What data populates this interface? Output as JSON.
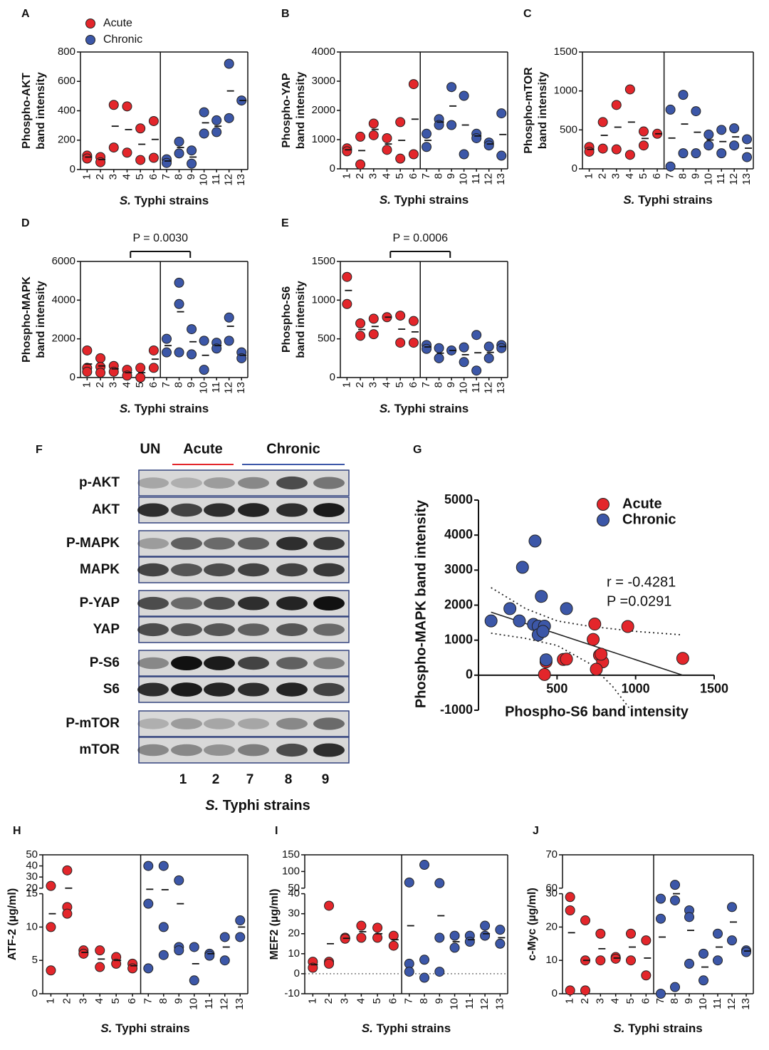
{
  "chart_data": [
    {
      "type": "dot",
      "panel": "A",
      "ylabel": [
        "Phospho-AKT",
        "band intensity"
      ],
      "xlabel_italic": "S.",
      "xlabel": "Typhi strains",
      "categories": [
        "1",
        "2",
        "3",
        "4",
        "5",
        "6",
        "7",
        "8",
        "9",
        "10",
        "11",
        "12",
        "13"
      ],
      "ylim": [
        0,
        800
      ],
      "yticks": [
        0,
        200,
        400,
        600,
        800
      ],
      "legend": "upper left",
      "series": [
        {
          "name": "Acute",
          "color": "#e3262b",
          "x": [
            "1",
            "1",
            "2",
            "2",
            "3",
            "3",
            "4",
            "4",
            "5",
            "5",
            "6",
            "6"
          ],
          "values": [
            95,
            75,
            85,
            50,
            440,
            150,
            430,
            115,
            280,
            65,
            330,
            80
          ]
        },
        {
          "name": "Chronic",
          "color": "#3c57a8",
          "x": [
            "7",
            "7",
            "8",
            "8",
            "9",
            "9",
            "10",
            "10",
            "11",
            "11",
            "12",
            "12",
            "13"
          ],
          "values": [
            70,
            45,
            190,
            110,
            130,
            40,
            390,
            245,
            335,
            255,
            720,
            350,
            470
          ]
        }
      ],
      "means": [
        85,
        68,
        295,
        272,
        172,
        205,
        58,
        150,
        85,
        318,
        295,
        535,
        470
      ]
    },
    {
      "type": "dot",
      "panel": "B",
      "ylabel": [
        "Phospho-YAP",
        "band intensity"
      ],
      "xlabel_italic": "S.",
      "xlabel": "Typhi strains",
      "categories": [
        "1",
        "2",
        "3",
        "4",
        "5",
        "6",
        "7",
        "8",
        "9",
        "10",
        "11",
        "12",
        "13"
      ],
      "ylim": [
        0,
        4000
      ],
      "yticks": [
        0,
        1000,
        2000,
        3000,
        4000
      ],
      "series": [
        {
          "color": "#e3262b",
          "x": [
            "1",
            "1",
            "2",
            "2",
            "3",
            "3",
            "4",
            "4",
            "5",
            "5",
            "6",
            "6"
          ],
          "values": [
            700,
            600,
            1100,
            150,
            1550,
            1150,
            1050,
            650,
            1600,
            350,
            2900,
            500
          ]
        },
        {
          "color": "#3c57a8",
          "x": [
            "7",
            "7",
            "8",
            "8",
            "9",
            "9",
            "10",
            "10",
            "11",
            "11",
            "12",
            "12",
            "13",
            "13"
          ],
          "values": [
            1200,
            750,
            1700,
            1500,
            2800,
            1500,
            2500,
            500,
            1200,
            1050,
            900,
            800,
            1900,
            450
          ]
        }
      ],
      "means": [
        650,
        625,
        1350,
        850,
        975,
        1700,
        975,
        1600,
        2150,
        1500,
        1125,
        850,
        1175
      ]
    },
    {
      "type": "dot",
      "panel": "C",
      "ylabel": [
        "Phospho-mTOR",
        "band intensity"
      ],
      "xlabel_italic": "S.",
      "xlabel": "Typhi strains",
      "categories": [
        "1",
        "2",
        "3",
        "4",
        "5",
        "6",
        "7",
        "8",
        "9",
        "10",
        "11",
        "12",
        "13"
      ],
      "ylim": [
        0,
        1500
      ],
      "yticks": [
        0,
        500,
        1000,
        1500
      ],
      "series": [
        {
          "color": "#e3262b",
          "x": [
            "1",
            "1",
            "2",
            "2",
            "3",
            "3",
            "4",
            "4",
            "5",
            "5",
            "6"
          ],
          "values": [
            280,
            220,
            600,
            260,
            820,
            250,
            1020,
            180,
            480,
            300,
            450
          ]
        },
        {
          "color": "#3c57a8",
          "x": [
            "7",
            "7",
            "8",
            "8",
            "9",
            "9",
            "10",
            "10",
            "11",
            "11",
            "12",
            "12",
            "13",
            "13"
          ],
          "values": [
            760,
            30,
            950,
            200,
            740,
            200,
            440,
            300,
            500,
            200,
            520,
            300,
            380,
            150
          ]
        }
      ],
      "means": [
        250,
        430,
        535,
        600,
        390,
        450,
        395,
        575,
        470,
        370,
        350,
        410,
        265
      ]
    },
    {
      "type": "dot",
      "panel": "D",
      "ylabel": [
        "Phospho-MAPK",
        "band intensity"
      ],
      "xlabel_italic": "S.",
      "xlabel": "Typhi strains",
      "annotation": "P = 0.0030",
      "categories": [
        "1",
        "2",
        "3",
        "4",
        "5",
        "6",
        "7",
        "8",
        "9",
        "10",
        "11",
        "12",
        "13"
      ],
      "ylim": [
        0,
        6000
      ],
      "yticks": [
        0,
        2000,
        4000,
        6000
      ],
      "series": [
        {
          "color": "#e3262b",
          "x": [
            "1",
            "1",
            "1",
            "2",
            "2",
            "2",
            "3",
            "3",
            "4",
            "4",
            "5",
            "5",
            "6",
            "6"
          ],
          "values": [
            1400,
            500,
            300,
            1000,
            550,
            250,
            600,
            300,
            400,
            100,
            500,
            0,
            1400,
            500
          ]
        },
        {
          "color": "#3c57a8",
          "x": [
            "7",
            "7",
            "8",
            "8",
            "8",
            "9",
            "9",
            "10",
            "10",
            "11",
            "11",
            "12",
            "12",
            "13",
            "13"
          ],
          "values": [
            2000,
            1300,
            4900,
            3800,
            1300,
            2500,
            1200,
            1900,
            400,
            1800,
            1500,
            3100,
            1900,
            1300,
            1000
          ]
        }
      ],
      "means": [
        700,
        600,
        450,
        250,
        250,
        950,
        1650,
        3400,
        1850,
        1150,
        1650,
        2650,
        1150
      ]
    },
    {
      "type": "dot",
      "panel": "E",
      "ylabel": [
        "Phospho-S6",
        "band intensity"
      ],
      "xlabel_italic": "S.",
      "xlabel": "Typhi strains",
      "annotation": "P = 0.0006",
      "categories": [
        "1",
        "2",
        "3",
        "4",
        "5",
        "6",
        "7",
        "8",
        "9",
        "10",
        "11",
        "12",
        "13"
      ],
      "ylim": [
        0,
        1500
      ],
      "yticks": [
        0,
        500,
        1000,
        1500
      ],
      "series": [
        {
          "color": "#e3262b",
          "x": [
            "1",
            "1",
            "2",
            "2",
            "3",
            "3",
            "4",
            "5",
            "5",
            "6",
            "6"
          ],
          "values": [
            1300,
            950,
            700,
            540,
            760,
            560,
            780,
            800,
            450,
            730,
            450
          ]
        },
        {
          "color": "#3c57a8",
          "x": [
            "7",
            "7",
            "8",
            "8",
            "9",
            "10",
            "10",
            "11",
            "11",
            "12",
            "12",
            "13",
            "13"
          ],
          "values": [
            420,
            370,
            380,
            250,
            350,
            390,
            200,
            550,
            90,
            400,
            250,
            420,
            380
          ]
        }
      ],
      "means": [
        1125,
        620,
        660,
        780,
        625,
        590,
        395,
        315,
        350,
        295,
        320,
        325,
        400
      ]
    },
    {
      "type": "scatter",
      "panel": "G",
      "xlabel": "Phospho-S6 band intensity",
      "ylabel": "Phospho-MAPK band intensity",
      "xlim": [
        0,
        1500
      ],
      "ylim": [
        -1000,
        5000
      ],
      "xticks": [
        500,
        1000,
        1500
      ],
      "yticks": [
        -1000,
        0,
        1000,
        2000,
        3000,
        4000,
        5000
      ],
      "legend": "upper right",
      "annotations": [
        "r = -0.4281",
        "P =0.0291"
      ],
      "series": [
        {
          "name": "Acute",
          "color": "#e3262b",
          "x": [
            1300,
            950,
            740,
            730,
            770,
            790,
            780,
            750,
            420,
            430,
            540,
            560
          ],
          "values": [
            480,
            1390,
            1460,
            1020,
            570,
            380,
            600,
            170,
            20,
            380,
            450,
            460
          ]
        },
        {
          "name": "Chronic",
          "color": "#3c57a8",
          "x": [
            80,
            200,
            260,
            280,
            360,
            400,
            560,
            350,
            380,
            420,
            380,
            410,
            430
          ],
          "values": [
            1550,
            1900,
            1550,
            3080,
            3830,
            2250,
            1900,
            1450,
            1400,
            1400,
            1150,
            1250,
            440
          ]
        }
      ],
      "fit": {
        "x": [
          80,
          1300
        ],
        "values": [
          1800,
          0
        ]
      },
      "ci_upper": {
        "x": [
          80,
          300,
          500,
          700,
          1000,
          1300
        ],
        "values": [
          2500,
          1900,
          1550,
          1400,
          1250,
          1150
        ]
      },
      "ci_lower": {
        "x": [
          80,
          300,
          500,
          700,
          850,
          970
        ],
        "values": [
          1200,
          1050,
          850,
          350,
          -300,
          -1000
        ]
      }
    },
    {
      "type": "dot",
      "panel": "H",
      "ylabel": [
        "ATF-2 (µg/ml)"
      ],
      "xlabel_italic": "S.",
      "xlabel": "Typhi strains",
      "categories": [
        "1",
        "2",
        "3",
        "4",
        "5",
        "6",
        "7",
        "8",
        "9",
        "10",
        "11",
        "12",
        "13"
      ],
      "ylim": [
        0,
        50
      ],
      "ybreak": [
        15,
        20
      ],
      "yticks": [
        0,
        5,
        10,
        15,
        20,
        30,
        40,
        50
      ],
      "series": [
        {
          "color": "#e3262b",
          "x": [
            "1",
            "1",
            "1",
            "2",
            "2",
            "2",
            "3",
            "3",
            "4",
            "4",
            "5",
            "5",
            "6",
            "6"
          ],
          "values": [
            22,
            10,
            3.5,
            36,
            13,
            12,
            6.5,
            6,
            6.5,
            4,
            5.5,
            4.5,
            4.5,
            3.8
          ]
        },
        {
          "color": "#3c57a8",
          "x": [
            "7",
            "7",
            "7",
            "8",
            "8",
            "8",
            "9",
            "9",
            "9",
            "10",
            "10",
            "11",
            "11",
            "12",
            "12",
            "13",
            "13"
          ],
          "values": [
            40,
            13.5,
            3.8,
            40,
            10,
            5.8,
            27,
            7,
            6.5,
            7,
            2,
            6,
            5.7,
            8.5,
            5,
            11,
            8.5
          ]
        }
      ],
      "means": [
        12,
        20,
        6.2,
        5.2,
        5,
        4.2,
        19,
        18.6,
        13.5,
        4.5,
        6,
        7,
        10
      ]
    },
    {
      "type": "dot",
      "panel": "I",
      "ylabel": [
        "MEF2 (µg/ml)"
      ],
      "xlabel_italic": "S.",
      "xlabel": "Typhi strains",
      "hline": 0,
      "categories": [
        "1",
        "2",
        "3",
        "4",
        "5",
        "6",
        "7",
        "8",
        "9",
        "10",
        "11",
        "12",
        "13"
      ],
      "ylim": [
        -10,
        150
      ],
      "ybreak": [
        40,
        50
      ],
      "yticks": [
        -10,
        0,
        10,
        20,
        30,
        40,
        50,
        100,
        150
      ],
      "series": [
        {
          "color": "#e3262b",
          "x": [
            "1",
            "1",
            "2",
            "2",
            "2",
            "3",
            "3",
            "4",
            "4",
            "5",
            "5",
            "6",
            "6"
          ],
          "values": [
            6,
            3,
            34,
            6,
            5,
            18,
            17.5,
            24,
            18,
            23,
            18,
            19,
            14
          ]
        },
        {
          "color": "#3c57a8",
          "x": [
            "7",
            "7",
            "7",
            "8",
            "8",
            "8",
            "9",
            "9",
            "9",
            "10",
            "10",
            "11",
            "11",
            "12",
            "12",
            "13",
            "13"
          ],
          "values": [
            67,
            5,
            1,
            120,
            7,
            -2,
            65,
            18,
            1,
            19,
            13,
            19,
            16,
            24,
            19,
            22,
            15
          ]
        }
      ],
      "means": [
        4.5,
        15,
        17.7,
        21,
        20,
        17,
        24,
        null,
        29,
        16,
        17,
        20,
        18
      ]
    },
    {
      "type": "dot",
      "panel": "J",
      "ylabel": [
        "c-Myc (µg/ml)"
      ],
      "xlabel_italic": "S.",
      "xlabel": "Typhi strains",
      "categories": [
        "1",
        "2",
        "3",
        "4",
        "5",
        "6",
        "7",
        "8",
        "9",
        "10",
        "11",
        "12",
        "13"
      ],
      "ylim": [
        0,
        70
      ],
      "ybreak": [
        30,
        60
      ],
      "yticks": [
        0,
        10,
        20,
        30,
        60,
        70
      ],
      "series": [
        {
          "color": "#e3262b",
          "x": [
            "1",
            "1",
            "1",
            "2",
            "2",
            "2",
            "3",
            "3",
            "4",
            "4",
            "5",
            "5",
            "6",
            "6"
          ],
          "values": [
            29,
            25,
            1,
            22,
            10,
            1,
            18,
            10,
            11,
            10.5,
            18,
            10,
            16,
            5.5
          ]
        },
        {
          "color": "#3c57a8",
          "x": [
            "7",
            "7",
            "7",
            "8",
            "8",
            "8",
            "9",
            "9",
            "9",
            "10",
            "10",
            "11",
            "11",
            "12",
            "12",
            "13",
            "13"
          ],
          "values": [
            28.5,
            22.5,
            0,
            61,
            28,
            2,
            25,
            23,
            9,
            12,
            4,
            18,
            10,
            26,
            16,
            13,
            12.5
          ]
        }
      ],
      "means": [
        18.3,
        10,
        13.5,
        10.7,
        14,
        10.7,
        17,
        30,
        19,
        8,
        14,
        21.5,
        12.8
      ]
    }
  ],
  "blot": {
    "panel": "F",
    "groups": [
      "UN",
      "Acute",
      "Chronic"
    ],
    "rows": [
      "p-AKT",
      "AKT",
      "P-MAPK",
      "MAPK",
      "P-YAP",
      "YAP",
      "P-S6",
      "S6",
      "P-mTOR",
      "mTOR"
    ],
    "lanes": [
      "1",
      "2",
      "7",
      "8",
      "9"
    ],
    "xlabel_italic": "S.",
    "xlabel": "Typhi strains"
  }
}
